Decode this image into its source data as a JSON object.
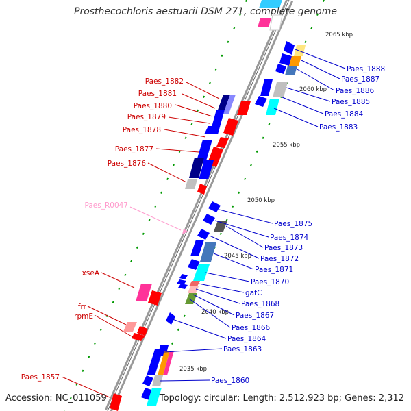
{
  "title": "Prosthecochloris aestuarii DSM 271, complete genome",
  "footer": {
    "accession": "Accession: NC_011059",
    "topology": "Topology: circular; Length: 2,512,923 bp; Genes: 2,312"
  },
  "colors": {
    "forward_label": "#0000cc",
    "reverse_label": "#cc0000",
    "rna_label": "#ff99cc",
    "backbone": "#999999",
    "tick": "#009900"
  },
  "ticks": [
    "2065 kbp",
    "2060 kbp",
    "2055 kbp",
    "2050 kbp",
    "2045 kbp",
    "2040 kbp",
    "2035 kbp"
  ],
  "forward_labels": [
    "Paes_1888",
    "Paes_1887",
    "Paes_1886",
    "Paes_1885",
    "Paes_1884",
    "Paes_1883",
    "Paes_1875",
    "Paes_1874",
    "Paes_1873",
    "Paes_1872",
    "Paes_1871",
    "Paes_1870",
    "gatC",
    "Paes_1868",
    "Paes_1867",
    "Paes_1866",
    "Paes_1864",
    "Paes_1863",
    "Paes_1860"
  ],
  "reverse_labels": [
    "Paes_1882",
    "Paes_1881",
    "Paes_1880",
    "Paes_1879",
    "Paes_1878",
    "Paes_1877",
    "Paes_1876",
    "xseA",
    "frr",
    "rpmE",
    "Paes_1857"
  ],
  "rna_labels": [
    "Paes_R0047"
  ]
}
